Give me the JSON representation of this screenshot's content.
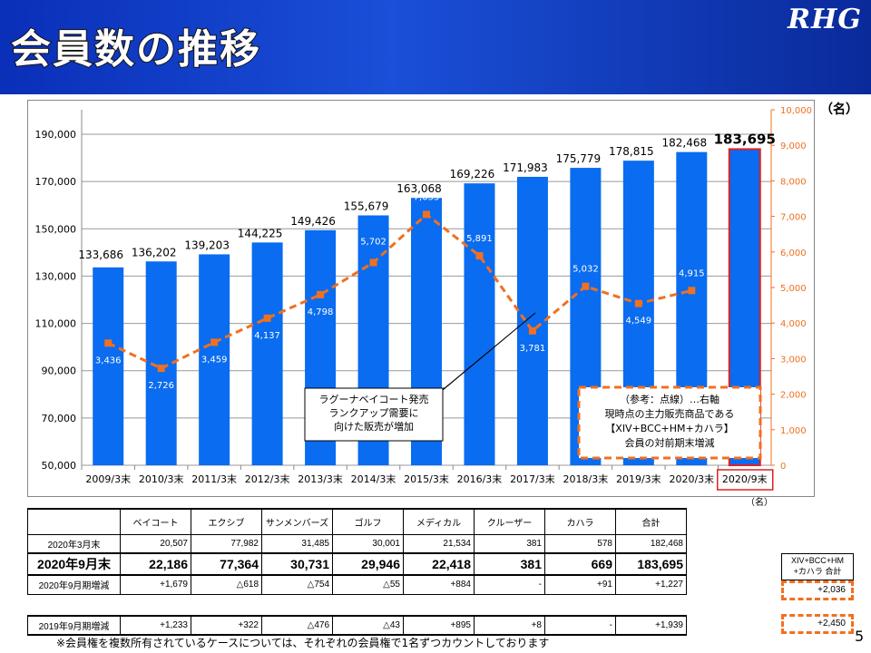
{
  "header": {
    "title": "会員数の推移",
    "logo": "RHG"
  },
  "chart_data": {
    "type": "bar+line",
    "categories": [
      "2009/3末",
      "2010/3末",
      "2011/3末",
      "2012/3末",
      "2013/3末",
      "2014/3末",
      "2015/3末",
      "2016/3末",
      "2017/3末",
      "2018/3末",
      "2019/3末",
      "2020/3末",
      "2020/9末"
    ],
    "bar_values": [
      133686,
      136202,
      139203,
      144225,
      149426,
      155679,
      163068,
      169226,
      171983,
      175779,
      178815,
      182468,
      183695
    ],
    "bar_labels": [
      "133,686",
      "136,202",
      "139,203",
      "144,225",
      "149,426",
      "155,679",
      "163,068",
      "169,226",
      "171,983",
      "175,779",
      "178,815",
      "182,468",
      "183,695"
    ],
    "line_values": [
      3436,
      2726,
      3459,
      4137,
      4798,
      5702,
      7055,
      5891,
      3781,
      5032,
      4549,
      4915
    ],
    "line_labels": [
      "3,436",
      "2,726",
      "3,459",
      "4,137",
      "4,798",
      "5,702",
      "7,055",
      "5,891",
      "3,781",
      "5,032",
      "4,549",
      "4,915"
    ],
    "left_axis": {
      "ylim": [
        50000,
        190000
      ],
      "ticks": [
        "50,000",
        "70,000",
        "90,000",
        "110,000",
        "130,000",
        "150,000",
        "170,000",
        "190,000"
      ]
    },
    "right_axis": {
      "ylim": [
        0,
        10000
      ],
      "ticks": [
        "0",
        "1,000",
        "2,000",
        "3,000",
        "4,000",
        "5,000",
        "6,000",
        "7,000",
        "8,000",
        "9,000",
        "10,000"
      ],
      "unit": "（名）"
    },
    "colors": {
      "bar": "#0a6cf0",
      "line": "#f07020",
      "highlight": "#e02020"
    },
    "grid": true,
    "callout": "ラグーナベイコート発売\nランクアップ需要に\n向けた販売が増加",
    "legend_note": "（参考：点線）…右軸\n現時点の主力販売商品である\n【XIV+BCC+HM+カハラ】\n会員の対前期末増減"
  },
  "table": {
    "unit": "（名）",
    "headers": [
      "",
      "ベイコート",
      "エクシブ",
      "サンメンバーズ",
      "ゴルフ",
      "メディカル",
      "クルーザー",
      "カハラ",
      "合計"
    ],
    "rows": [
      [
        "2020年3月末",
        "20,507",
        "77,982",
        "31,485",
        "30,001",
        "21,534",
        "381",
        "578",
        "182,468"
      ],
      [
        "2020年9月末",
        "22,186",
        "77,364",
        "30,731",
        "29,946",
        "22,418",
        "381",
        "669",
        "183,695"
      ],
      [
        "2020年9月期増減",
        "+1,679",
        "△618",
        "△754",
        "△55",
        "+884",
        "-",
        "+91",
        "+1,227"
      ]
    ],
    "row2019": [
      "2019年9月期増減",
      "+1,233",
      "+322",
      "△476",
      "△43",
      "+895",
      "+8",
      "-",
      "+1,939"
    ],
    "side_header": "XIV+BCC+HM\n+カハラ 合計",
    "side_2020": "+2,036",
    "side_2019": "+2,450"
  },
  "note": "※会員権を複数所有されているケースについては、それぞれの会員権で1名ずつカウントしております",
  "page_number": "5"
}
